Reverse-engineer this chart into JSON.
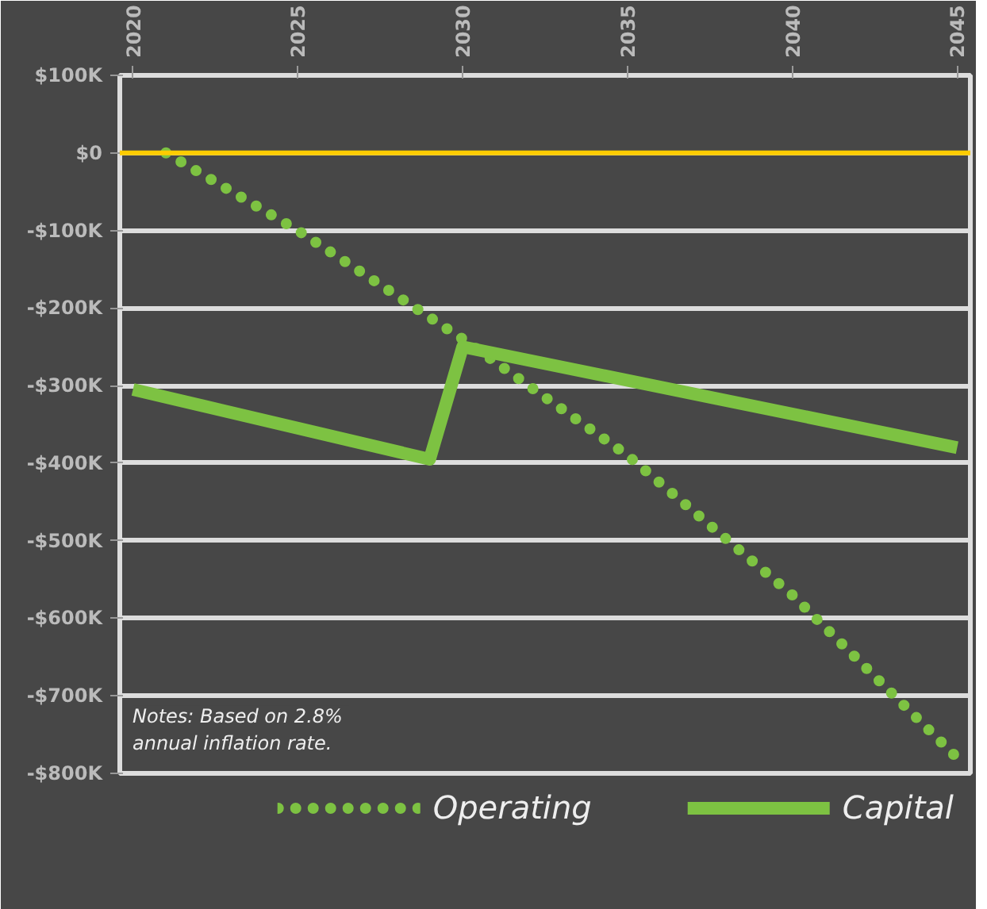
{
  "chart_data": {
    "type": "line",
    "x": [
      2021,
      2025,
      2030,
      2035,
      2040,
      2045
    ],
    "series": [
      {
        "name": "Operating",
        "color": "#7dc242",
        "line_style": "dotted",
        "values": [
          0,
          -100000,
          -240000,
          -390000,
          -570000,
          -780000
        ]
      },
      {
        "name": "Capital",
        "color": "#7dc242",
        "line_style": "solid",
        "x": [
          2020,
          2029,
          2030,
          2045
        ],
        "values": [
          -305000,
          -395000,
          -250000,
          -380000
        ]
      }
    ],
    "xlim": [
      2019.6,
      2045.4
    ],
    "xticks": [
      2020,
      2025,
      2030,
      2035,
      2040,
      2045
    ],
    "ylim": [
      -800000,
      100000
    ],
    "yticks": [
      {
        "value": 100000,
        "label": "$100K"
      },
      {
        "value": 0,
        "label": "$0"
      },
      {
        "value": -100000,
        "label": "-$100K"
      },
      {
        "value": -200000,
        "label": "-$200K"
      },
      {
        "value": -300000,
        "label": "-$300K"
      },
      {
        "value": -400000,
        "label": "-$400K"
      },
      {
        "value": -500000,
        "label": "-$500K"
      },
      {
        "value": -600000,
        "label": "-$600K"
      },
      {
        "value": -700000,
        "label": "-$700K"
      },
      {
        "value": -800000,
        "label": "-$800K"
      }
    ],
    "ref_lines": [
      {
        "axis": "y",
        "value": 0,
        "color": "#ffcc00"
      }
    ],
    "grid": "y",
    "legend": "bottom",
    "annotations": [
      "Notes:  Based on 2.8%\nannual inflation rate."
    ]
  }
}
